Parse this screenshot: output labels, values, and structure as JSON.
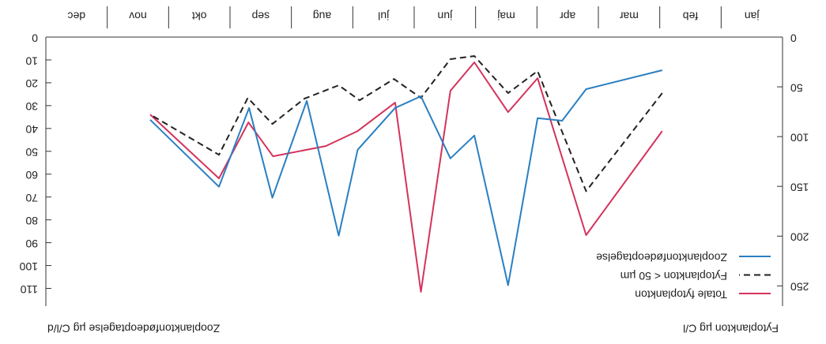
{
  "chart_data": {
    "type": "line",
    "y_label": "Fytoplankton µg C/l",
    "y2_label": "Zooplanktonfødeoptagelse µg C/l/d",
    "categories": [
      "jan",
      "feb",
      "mar",
      "apr",
      "maj",
      "jun",
      "jul",
      "aug",
      "sep",
      "okt",
      "nov",
      "dec"
    ],
    "xlim": [
      0,
      12
    ],
    "ylim": [
      0,
      264
    ],
    "yticks": [
      0,
      50,
      100,
      150,
      200,
      250
    ],
    "y2lim": [
      0,
      115
    ],
    "y2ticks": [
      0,
      10,
      20,
      30,
      40,
      50,
      60,
      70,
      80,
      90,
      100,
      110
    ],
    "rotated": true,
    "series": [
      {
        "name": "Totale fytoplankton",
        "color": "#d4335c",
        "dash": false,
        "x": [
          1.96,
          3.2,
          3.99,
          4.47,
          5.02,
          5.41,
          5.89,
          6.31,
          6.92,
          7.44,
          8.3,
          8.7,
          9.18,
          10.3
        ],
        "values": [
          94.4,
          199,
          41.3,
          75.4,
          25.4,
          54,
          256,
          65.9,
          94.4,
          109.5,
          119.8,
          85.7,
          142,
          77.8
        ]
      },
      {
        "name": "Fytoplankton < 50 µm",
        "color": "#222222",
        "dash": true,
        "x": [
          1.96,
          3.2,
          3.99,
          4.47,
          5.02,
          5.41,
          5.89,
          6.33,
          6.89,
          7.23,
          7.79,
          8.31,
          8.71,
          9.18,
          10.3
        ],
        "values": [
          56.3,
          154.8,
          34.1,
          56.3,
          19,
          22.2,
          61.1,
          42.1,
          63.5,
          48.4,
          61.9,
          87.3,
          61.1,
          118.3,
          77.8
        ]
      },
      {
        "name": "Zooplanktonfødeoptagelse",
        "color": "#2a7fc1",
        "dash": false,
        "axis": "y2",
        "x": [
          1.96,
          3.2,
          3.59,
          3.99,
          4.47,
          5.02,
          5.41,
          5.89,
          6.31,
          6.92,
          7.23,
          7.75,
          8.31,
          8.69,
          9.18,
          10.3
        ],
        "values": [
          14.5,
          22.8,
          36.6,
          35.5,
          108.6,
          43.1,
          53.1,
          25.9,
          31,
          49.3,
          86.9,
          27.9,
          70.3,
          31,
          65.5,
          36.2
        ]
      }
    ]
  }
}
